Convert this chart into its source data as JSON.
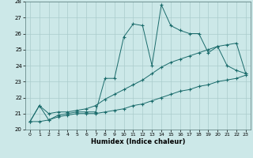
{
  "xlabel": "Humidex (Indice chaleur)",
  "xlim": [
    -0.5,
    23.5
  ],
  "ylim": [
    20,
    28
  ],
  "yticks": [
    20,
    21,
    22,
    23,
    24,
    25,
    26,
    27,
    28
  ],
  "xticks": [
    0,
    1,
    2,
    3,
    4,
    5,
    6,
    7,
    8,
    9,
    10,
    11,
    12,
    13,
    14,
    15,
    16,
    17,
    18,
    19,
    20,
    21,
    22,
    23
  ],
  "background_color": "#cce8e8",
  "grid_color": "#aacccc",
  "line_color": "#1a6b6b",
  "series_main": [
    20.5,
    21.5,
    20.6,
    20.9,
    21.0,
    21.1,
    21.1,
    21.1,
    23.2,
    23.2,
    25.8,
    26.6,
    26.5,
    24.0,
    27.8,
    26.5,
    26.2,
    26.0,
    26.0,
    24.8,
    25.2,
    24.0,
    23.7,
    23.5
  ],
  "series_min": [
    20.5,
    20.5,
    20.6,
    20.8,
    20.9,
    21.0,
    21.0,
    21.0,
    21.1,
    21.2,
    21.3,
    21.5,
    21.6,
    21.8,
    22.0,
    22.2,
    22.4,
    22.5,
    22.7,
    22.8,
    23.0,
    23.1,
    23.2,
    23.4
  ],
  "series_max": [
    20.5,
    21.5,
    21.0,
    21.1,
    21.1,
    21.2,
    21.3,
    21.5,
    21.9,
    22.2,
    22.5,
    22.8,
    23.1,
    23.5,
    23.9,
    24.2,
    24.4,
    24.6,
    24.8,
    25.0,
    25.2,
    25.3,
    25.4,
    23.5
  ]
}
